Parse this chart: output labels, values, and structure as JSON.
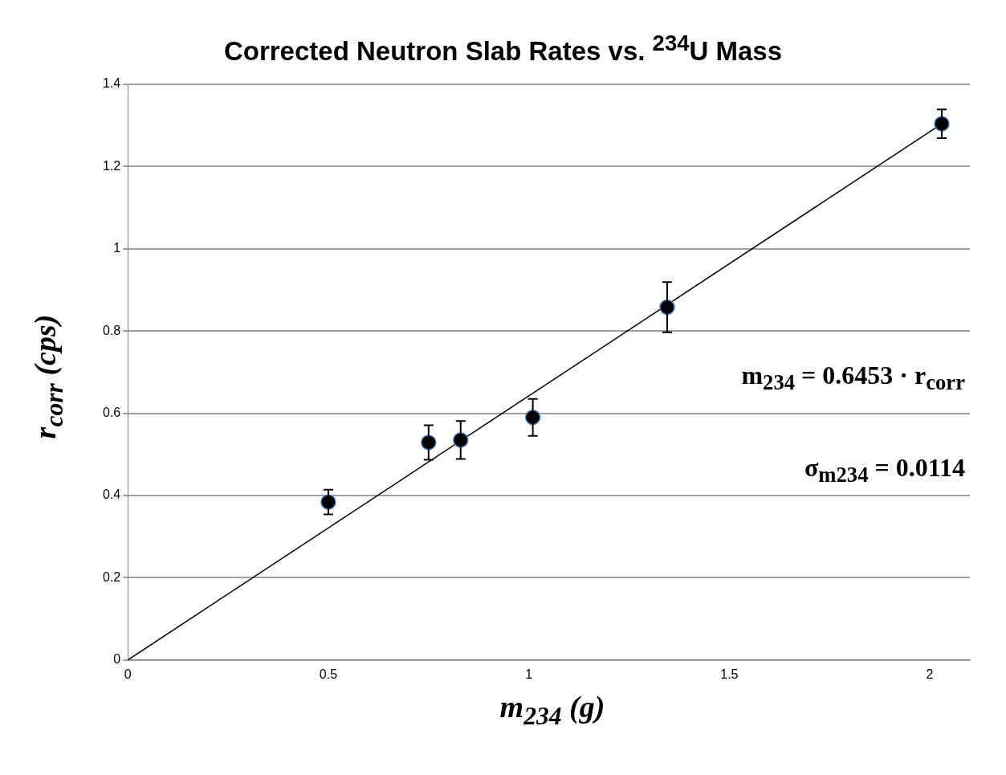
{
  "chart_data": {
    "type": "scatter",
    "title": "Corrected Neutron Slab Rates vs. $^{234}$U Mass",
    "xlabel": "m$_{234}$ (g)",
    "ylabel": "r$_{corr}$ (cps)",
    "annotations": [
      "m$_{234}$ = 0.6453 · r$_{corr}$",
      "σ$_{m234}$ = 0.0114"
    ],
    "series": [
      {
        "color": "#000000",
        "x": [
          0.5,
          0.75,
          0.83,
          1.01,
          1.345,
          2.03
        ],
        "values": [
          0.384,
          0.529,
          0.535,
          0.59,
          0.858,
          1.304
        ],
        "errors": [
          0.03,
          0.042,
          0.046,
          0.045,
          0.061,
          0.035
        ],
        "marker": "circle"
      },
      {
        "type": "line",
        "color": "#000000",
        "x": [
          0,
          2.03
        ],
        "values": [
          0,
          1.304
        ],
        "marker": "none",
        "line_style": "solid"
      }
    ],
    "xlim": [
      0,
      2.1
    ],
    "xticks": [
      0,
      0.5,
      1,
      1.5,
      2
    ],
    "ylim": [
      0,
      1.4
    ],
    "yticks": [
      0,
      0.2,
      0.4,
      0.6,
      0.8,
      1,
      1.2,
      1.4
    ],
    "grid": "y",
    "legend": false
  }
}
